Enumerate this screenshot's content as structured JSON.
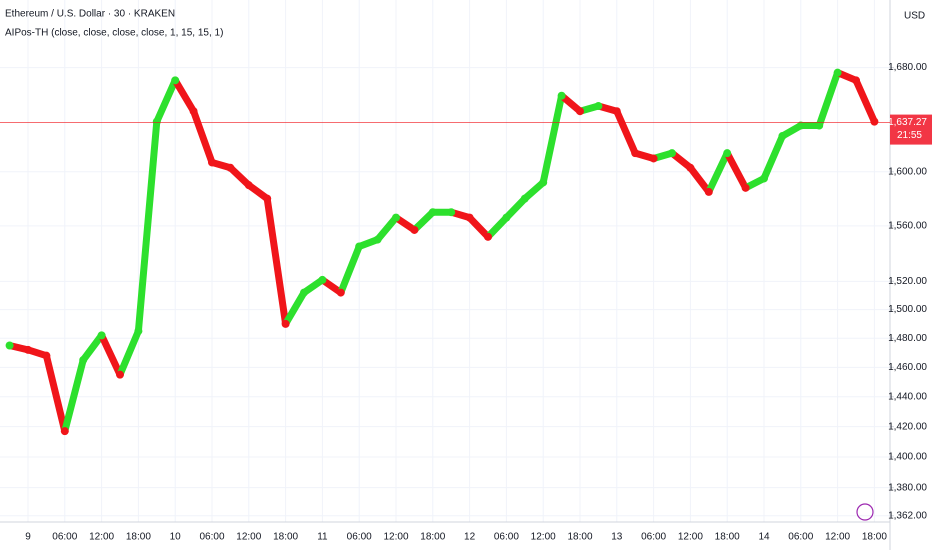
{
  "header": {
    "title": "Ethereum / U.S. Dollar · 30 · KRAKEN",
    "indicator": "AIPos-TH (close, close, close, close, 1, 15, 15, 1)",
    "currency": "USD"
  },
  "chart_data": {
    "type": "line",
    "log_scale": true,
    "grid": true,
    "categories": [
      null,
      "9",
      null,
      "06:00",
      null,
      "12:00",
      null,
      "18:00",
      null,
      "10",
      null,
      "06:00",
      null,
      "12:00",
      null,
      "18:00",
      null,
      "11",
      null,
      "06:00",
      null,
      "12:00",
      null,
      "18:00",
      null,
      "12",
      null,
      "06:00",
      null,
      "12:00",
      null,
      "18:00",
      null,
      "13",
      null,
      "06:00",
      null,
      "12:00",
      null,
      "18:00",
      null,
      "14",
      null,
      "06:00",
      null,
      "12:00",
      null,
      "18:00"
    ],
    "series": [
      {
        "values": [
          1475,
          1472,
          1468,
          1417,
          1465,
          1482,
          1455,
          1485,
          1638,
          1670,
          1646,
          1607,
          1603,
          1590,
          1580,
          1490,
          1512,
          1521,
          1512,
          1545,
          1550,
          1566,
          1557,
          1570,
          1570,
          1566,
          1552,
          1566,
          1580,
          1592,
          1658,
          1646,
          1650,
          1646,
          1614,
          1610,
          1614,
          1603,
          1585,
          1614,
          1588,
          1595,
          1627,
          1635,
          1635,
          1676,
          1670,
          1638
        ],
        "up_color": "#2de02d",
        "down_color": "#f0151a"
      }
    ],
    "ylim": [
      1358,
      1734
    ],
    "yticks": [
      {
        "value": 1362,
        "label": "1,362.00"
      },
      {
        "value": 1380,
        "label": "1,380.00"
      },
      {
        "value": 1400,
        "label": "1,400.00"
      },
      {
        "value": 1420,
        "label": "1,420.00"
      },
      {
        "value": 1440,
        "label": "1,440.00"
      },
      {
        "value": 1460,
        "label": "1,460.00"
      },
      {
        "value": 1480,
        "label": "1,480.00"
      },
      {
        "value": 1500,
        "label": "1,500.00"
      },
      {
        "value": 1520,
        "label": "1,520.00"
      },
      {
        "value": 1560,
        "label": "1,560.00"
      },
      {
        "value": 1600,
        "label": "1,600.00"
      },
      {
        "value": 1680,
        "label": "1,680.00"
      }
    ],
    "last_price": {
      "value": 1637.27,
      "label": "1,637.27"
    },
    "countdown": "21:55"
  }
}
